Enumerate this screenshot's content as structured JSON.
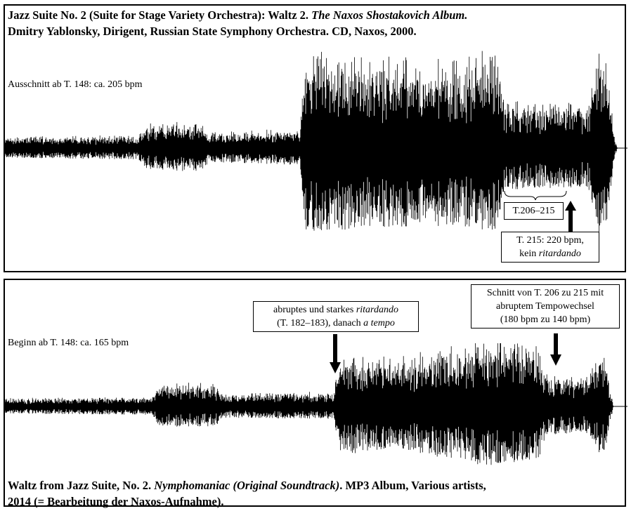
{
  "top_panel": {
    "title_line1_a": "Jazz Suite No. 2 (Suite for Stage Variety Orchestra): Waltz 2. ",
    "title_line1_b": "The Naxos Shostakovich Album.",
    "title_line2": "Dmitry Yablonsky, Dirigent, Russian State Symphony Orchestra. CD, Naxos, 2000.",
    "excerpt_note": "Ausschnitt ab T. 148: ca. 205 bpm",
    "bar_range_label": "T.206–215",
    "tempo_note_line1": "T. 215: 220 bpm,",
    "tempo_note_line2_a": "kein ",
    "tempo_note_line2_b": "ritardando"
  },
  "bottom_panel": {
    "start_note": "Beginn ab T. 148: ca. 165 bpm",
    "ritardando_line1_a": "abruptes und starkes ",
    "ritardando_line1_b": "ritardando",
    "ritardando_line2_a": "(T. 182–183), danach ",
    "ritardando_line2_b": "a tempo",
    "cut_line1": "Schnitt von T. 206 zu 215 mit",
    "cut_line2": "abruptem Tempowechsel",
    "cut_line3": "(180 bpm zu 140 bpm)",
    "title_line1_a": "Waltz from Jazz Suite, No. 2. ",
    "title_line1_b": "Nymphomaniac (Original Soundtrack)",
    "title_line1_c": ". MP3 Album, Various artists,",
    "title_line2": "2014 (= Bearbeitung der Naxos-Aufnahme)."
  },
  "colors": {
    "ink": "#000000",
    "background": "#ffffff"
  }
}
